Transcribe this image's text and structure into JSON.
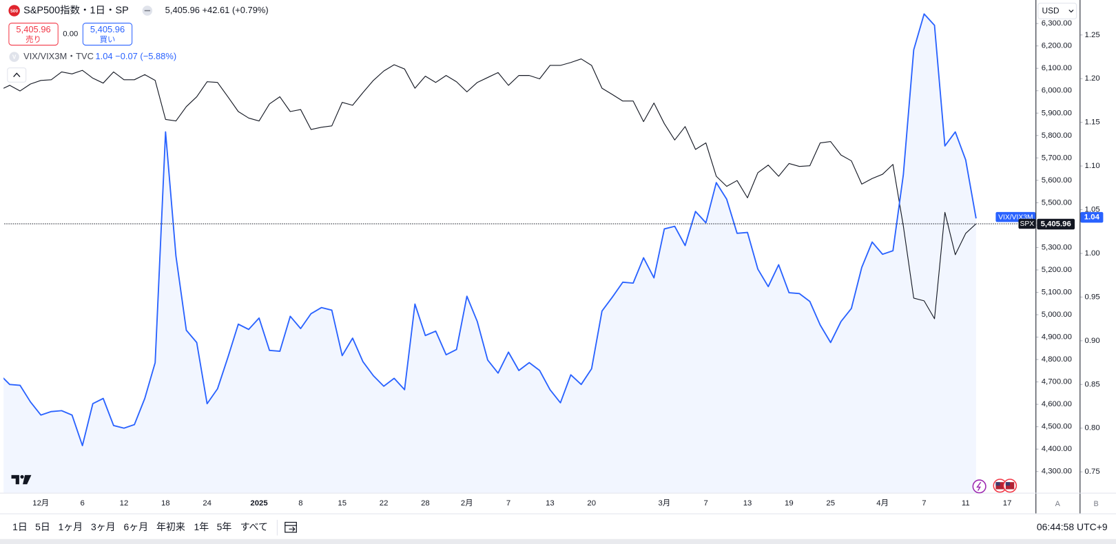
{
  "header": {
    "logo": "500",
    "symbol_title": "S&P500指数・1日・SP",
    "quote": "5,405.96 +42.61 (+0.79%)",
    "sell_price": "5,405.96",
    "sell_label": "売り",
    "spread": "0.00",
    "buy_price": "5,405.96",
    "buy_label": "買い",
    "compare_logo": "V",
    "compare_title": "VIX/VIX3M・TVC",
    "compare_quote": "1.04 −0.07 (−5.88%)",
    "currency": "USD"
  },
  "footer": {
    "ranges": [
      "1日",
      "5日",
      "1ヶ月",
      "3ヶ月",
      "6ヶ月",
      "年初来",
      "1年",
      "5年",
      "すべて"
    ],
    "clock": "06:44:58 UTC+9",
    "axis_buttons": [
      "A",
      "B"
    ]
  },
  "chart_data": {
    "type": "line",
    "grid": false,
    "categories": [
      null,
      null,
      null,
      null,
      "12月",
      null,
      null,
      null,
      "6",
      null,
      null,
      null,
      "12",
      null,
      null,
      null,
      "18",
      null,
      null,
      null,
      "24",
      null,
      null,
      null,
      null,
      "2025",
      null,
      null,
      null,
      "8",
      null,
      null,
      null,
      "15",
      null,
      null,
      null,
      "22",
      null,
      null,
      null,
      "28",
      null,
      null,
      null,
      "2月",
      null,
      null,
      null,
      "7",
      null,
      null,
      null,
      "13",
      null,
      null,
      null,
      "20",
      null,
      null,
      null,
      null,
      null,
      null,
      "3月",
      null,
      null,
      null,
      "7",
      null,
      null,
      null,
      "13",
      null,
      null,
      null,
      "19",
      null,
      null,
      null,
      "25",
      null,
      null,
      null,
      null,
      "4月",
      null,
      null,
      null,
      "7",
      null,
      null,
      null,
      "11",
      null,
      null,
      null,
      "17"
    ],
    "series": [
      {
        "name": "SPX",
        "color": "#131722",
        "axis": "y",
        "last_label": "5,405.96",
        "values": [
          6002,
          6024,
          5999,
          6030,
          6046,
          6049,
          6084,
          6075,
          6091,
          6056,
          6034,
          6084,
          6049,
          6049,
          6072,
          6046,
          5872,
          5865,
          5929,
          5973,
          6040,
          6037,
          5973,
          5907,
          5878,
          5865,
          5941,
          5973,
          5907,
          5916,
          5827,
          5837,
          5843,
          5948,
          5935,
          5992,
          6046,
          6088,
          6116,
          6097,
          6011,
          6065,
          6037,
          6068,
          6040,
          5995,
          6037,
          6059,
          6081,
          6024,
          6068,
          6068,
          6053,
          6113,
          6113,
          6126,
          6142,
          6113,
          6011,
          5983,
          5954,
          5954,
          5862,
          5945,
          5853,
          5780,
          5840,
          5738,
          5767,
          5618,
          5573,
          5599,
          5522,
          5634,
          5668,
          5618,
          5675,
          5662,
          5665,
          5767,
          5773,
          5713,
          5687,
          5583,
          5608,
          5627,
          5671,
          5396,
          5074,
          5062,
          4982,
          5457,
          5268,
          5363,
          5405.96,
          null,
          null,
          null
        ]
      },
      {
        "name": "VIX/VIX3M",
        "color": "#2962ff",
        "axis": "y2",
        "area": true,
        "values": [
          0.862,
          0.85,
          0.849,
          0.83,
          0.815,
          0.819,
          0.82,
          0.815,
          0.78,
          0.828,
          0.834,
          0.803,
          0.8,
          0.804,
          0.834,
          0.875,
          1.139,
          0.997,
          0.912,
          0.898,
          0.828,
          0.845,
          0.881,
          0.919,
          0.913,
          0.926,
          0.889,
          0.888,
          0.928,
          0.914,
          0.931,
          0.938,
          0.935,
          0.883,
          0.903,
          0.876,
          0.86,
          0.848,
          0.857,
          0.844,
          0.942,
          0.906,
          0.911,
          0.884,
          0.89,
          0.951,
          0.922,
          0.878,
          0.863,
          0.887,
          0.866,
          0.875,
          0.866,
          0.844,
          0.829,
          0.861,
          0.85,
          0.868,
          0.934,
          0.95,
          0.967,
          0.966,
          0.995,
          0.972,
          1.028,
          1.031,
          1.009,
          1.048,
          1.035,
          1.081,
          1.062,
          1.023,
          1.024,
          0.982,
          0.962,
          0.987,
          0.955,
          0.954,
          0.945,
          0.918,
          0.898,
          0.922,
          0.937,
          0.984,
          1.013,
          0.999,
          1.003,
          1.09,
          1.233,
          1.274,
          1.261,
          1.123,
          1.139,
          1.107,
          1.04,
          null,
          null,
          null
        ]
      }
    ],
    "ylim": [
      4205,
      6405
    ],
    "yticks": [
      {
        "value": 4300,
        "label": "4,300.00"
      },
      {
        "value": 4400,
        "label": "4,400.00"
      },
      {
        "value": 4500,
        "label": "4,500.00"
      },
      {
        "value": 4600,
        "label": "4,600.00"
      },
      {
        "value": 4700,
        "label": "4,700.00"
      },
      {
        "value": 4800,
        "label": "4,800.00"
      },
      {
        "value": 4900,
        "label": "4,900.00"
      },
      {
        "value": 5000,
        "label": "5,000.00"
      },
      {
        "value": 5100,
        "label": "5,100.00"
      },
      {
        "value": 5200,
        "label": "5,200.00"
      },
      {
        "value": 5300,
        "label": "5,300.00"
      },
      {
        "value": 5400,
        "label": "5,400.00"
      },
      {
        "value": 5500,
        "label": "5,500.00"
      },
      {
        "value": 5600,
        "label": "5,600.00"
      },
      {
        "value": 5700,
        "label": "5,700.00"
      },
      {
        "value": 5800,
        "label": "5,800.00"
      },
      {
        "value": 5900,
        "label": "5,900.00"
      },
      {
        "value": 6000,
        "label": "6,000.00"
      },
      {
        "value": 6100,
        "label": "6,100.00"
      },
      {
        "value": 6200,
        "label": "6,200.00"
      },
      {
        "value": 6300,
        "label": "6,300.00"
      }
    ],
    "y2lim": [
      0.726,
      1.29
    ],
    "y2ticks": [
      0.75,
      {
        "value": 0.8,
        "label": "0.80"
      },
      0.85,
      {
        "value": 0.9,
        "label": "0.90"
      },
      0.95,
      {
        "value": 1,
        "label": "1.00"
      },
      1.05,
      {
        "value": 1.1,
        "label": "1.10"
      },
      1.15,
      {
        "value": 1.2,
        "label": "1.20"
      },
      1.25
    ]
  }
}
